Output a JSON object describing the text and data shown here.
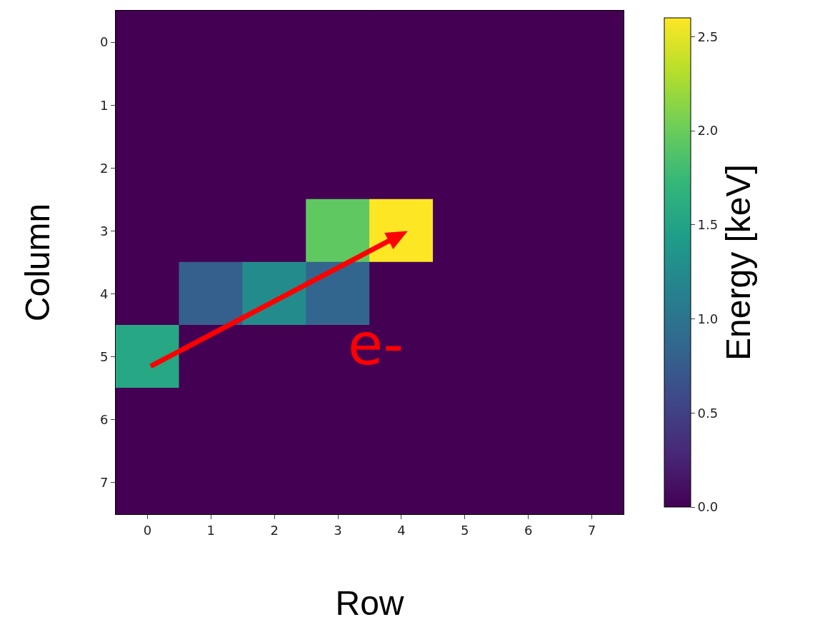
{
  "chart_data": {
    "type": "heatmap",
    "xlabel": "Row",
    "ylabel": "Column",
    "clabel": "Energy [keV]",
    "categories": [
      "0",
      "1",
      "2",
      "3",
      "4",
      "5",
      "6",
      "7"
    ],
    "y_categories": [
      "0",
      "1",
      "2",
      "3",
      "4",
      "5",
      "6",
      "7"
    ],
    "cells": [
      [
        0,
        0,
        0,
        0,
        0,
        0,
        0,
        0
      ],
      [
        0,
        0,
        0,
        0,
        0,
        0,
        0,
        0
      ],
      [
        0,
        0,
        0,
        0,
        0,
        0,
        0,
        0
      ],
      [
        0,
        0,
        0,
        1.95,
        2.6,
        0,
        0,
        0
      ],
      [
        0,
        0.78,
        1.25,
        0.85,
        0,
        0,
        0,
        0
      ],
      [
        1.55,
        0,
        0,
        0,
        0,
        0,
        0,
        0
      ],
      [
        0,
        0,
        0,
        0,
        0,
        0,
        0,
        0
      ],
      [
        0,
        0,
        0,
        0,
        0,
        0,
        0,
        0
      ]
    ],
    "clim": [
      0,
      2.6
    ],
    "cticks": [
      {
        "value": 0,
        "label": "0.0"
      },
      {
        "value": 0.5,
        "label": "0.5"
      },
      {
        "value": 1,
        "label": "1.0"
      },
      {
        "value": 1.5,
        "label": "1.5"
      },
      {
        "value": 2,
        "label": "2.0"
      },
      {
        "value": 2.5,
        "label": "2.5"
      }
    ],
    "annotations": [
      "e-"
    ]
  }
}
